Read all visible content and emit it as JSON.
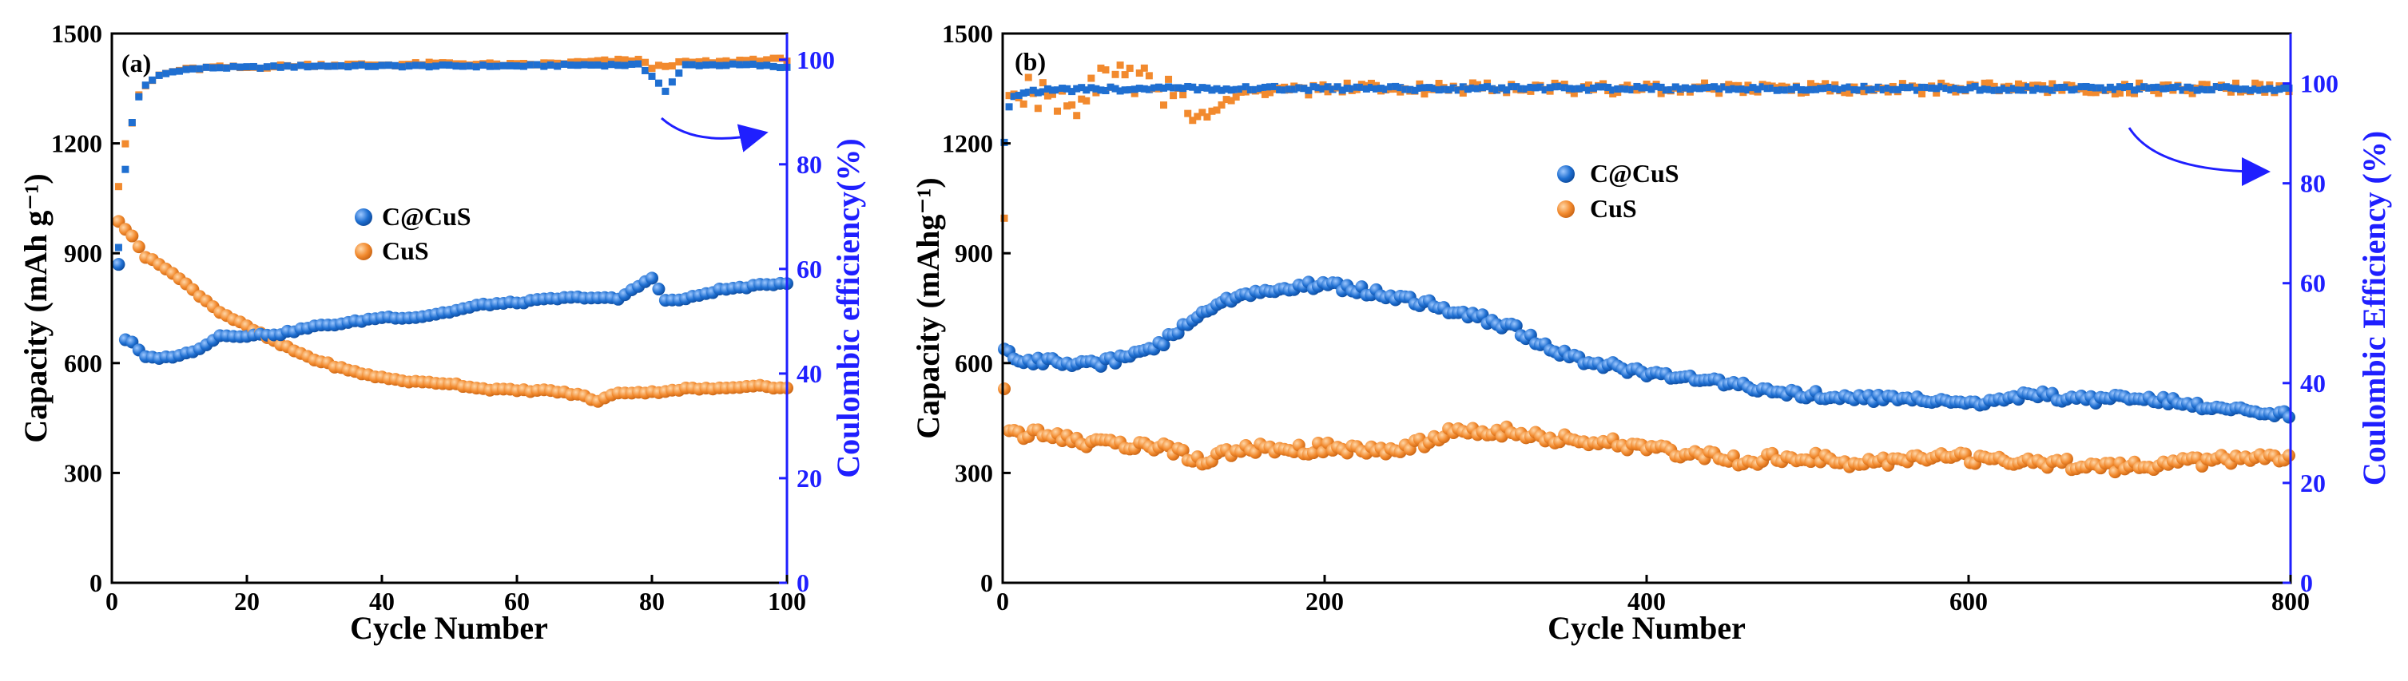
{
  "colors": {
    "ccus": "#1f6fd1",
    "cus": "#f28a2e",
    "ce_ccus": "#1f6fd1",
    "ce_cus": "#f28a2e",
    "right_axis": "#1f1fff",
    "arrow": "#1f1fff"
  },
  "chart_data": [
    {
      "type": "scatter",
      "panel": "(a)",
      "xlabel": "Cycle Number",
      "ylabel": "Capacity (mAh g⁻¹)",
      "y2label": "Coulombic efficiency(%)",
      "xlim": [
        0,
        100
      ],
      "ylim": [
        0,
        1500
      ],
      "y2lim": [
        0,
        105
      ],
      "xticks": [
        0,
        20,
        40,
        60,
        80,
        100
      ],
      "yticks": [
        0,
        300,
        600,
        900,
        1200,
        1500
      ],
      "y2ticks": [
        0,
        20,
        40,
        60,
        80,
        100
      ],
      "legend": [
        "C@CuS",
        "CuS"
      ],
      "legend_position": "center",
      "arrow_target": "right-axis",
      "capacity_ccus": [
        [
          1,
          870
        ],
        [
          2,
          665
        ],
        [
          3,
          655
        ],
        [
          5,
          615
        ],
        [
          8,
          615
        ],
        [
          12,
          630
        ],
        [
          16,
          675
        ],
        [
          20,
          675
        ],
        [
          25,
          680
        ],
        [
          30,
          700
        ],
        [
          35,
          710
        ],
        [
          40,
          725
        ],
        [
          45,
          725
        ],
        [
          50,
          740
        ],
        [
          55,
          760
        ],
        [
          60,
          765
        ],
        [
          65,
          775
        ],
        [
          70,
          780
        ],
        [
          75,
          775
        ],
        [
          78,
          810
        ],
        [
          80,
          835
        ],
        [
          82,
          770
        ],
        [
          85,
          775
        ],
        [
          90,
          800
        ],
        [
          95,
          810
        ],
        [
          100,
          820
        ]
      ],
      "capacity_cus": [
        [
          1,
          985
        ],
        [
          2,
          965
        ],
        [
          3,
          950
        ],
        [
          5,
          890
        ],
        [
          8,
          860
        ],
        [
          12,
          800
        ],
        [
          16,
          740
        ],
        [
          20,
          700
        ],
        [
          25,
          650
        ],
        [
          30,
          610
        ],
        [
          35,
          580
        ],
        [
          40,
          560
        ],
        [
          45,
          548
        ],
        [
          50,
          545
        ],
        [
          55,
          530
        ],
        [
          60,
          525
        ],
        [
          65,
          525
        ],
        [
          70,
          510
        ],
        [
          72,
          495
        ],
        [
          75,
          520
        ],
        [
          80,
          520
        ],
        [
          85,
          530
        ],
        [
          90,
          530
        ],
        [
          95,
          540
        ],
        [
          100,
          530
        ]
      ],
      "ce_ccus": [
        [
          1,
          64
        ],
        [
          2,
          79
        ],
        [
          3,
          88
        ],
        [
          4,
          93
        ],
        [
          5,
          95
        ],
        [
          7,
          97
        ],
        [
          10,
          98
        ],
        [
          15,
          98.5
        ],
        [
          20,
          98.5
        ],
        [
          30,
          98.8
        ],
        [
          40,
          98.8
        ],
        [
          50,
          98.8
        ],
        [
          60,
          98.8
        ],
        [
          70,
          99
        ],
        [
          78,
          99
        ],
        [
          80,
          97
        ],
        [
          82,
          94
        ],
        [
          85,
          99
        ],
        [
          90,
          99
        ],
        [
          95,
          99
        ],
        [
          100,
          98.5
        ]
      ],
      "ce_cus": [
        [
          1,
          76
        ],
        [
          2,
          84
        ],
        [
          3,
          88
        ],
        [
          4,
          93
        ],
        [
          5,
          95
        ],
        [
          7,
          97
        ],
        [
          10,
          98
        ],
        [
          15,
          98.5
        ],
        [
          20,
          98.5
        ],
        [
          30,
          99
        ],
        [
          40,
          99
        ],
        [
          50,
          99.3
        ],
        [
          60,
          99
        ],
        [
          70,
          99.5
        ],
        [
          78,
          100
        ],
        [
          80,
          98.5
        ],
        [
          85,
          99.5
        ],
        [
          90,
          99.5
        ],
        [
          95,
          100
        ],
        [
          100,
          100
        ]
      ]
    },
    {
      "type": "scatter",
      "panel": "(b)",
      "xlabel": "Cycle Number",
      "ylabel": "Capacity (mAhg⁻¹)",
      "y2label": "Coulombic Efficiency (%)",
      "xlim": [
        0,
        800
      ],
      "ylim": [
        0,
        1500
      ],
      "y2lim": [
        0,
        110
      ],
      "xticks": [
        0,
        200,
        400,
        600,
        800
      ],
      "yticks": [
        0,
        300,
        600,
        900,
        1200,
        1500
      ],
      "y2ticks": [
        0,
        20,
        40,
        60,
        80,
        100
      ],
      "legend": [
        "C@CuS",
        "CuS"
      ],
      "legend_position": "center",
      "arrow_target": "right-axis",
      "capacity_ccus": [
        [
          1,
          640
        ],
        [
          10,
          610
        ],
        [
          30,
          605
        ],
        [
          60,
          600
        ],
        [
          80,
          620
        ],
        [
          100,
          660
        ],
        [
          120,
          720
        ],
        [
          140,
          770
        ],
        [
          160,
          795
        ],
        [
          180,
          810
        ],
        [
          200,
          815
        ],
        [
          220,
          800
        ],
        [
          240,
          785
        ],
        [
          260,
          765
        ],
        [
          280,
          745
        ],
        [
          300,
          720
        ],
        [
          320,
          690
        ],
        [
          340,
          640
        ],
        [
          360,
          605
        ],
        [
          380,
          590
        ],
        [
          400,
          575
        ],
        [
          420,
          565
        ],
        [
          440,
          555
        ],
        [
          460,
          540
        ],
        [
          480,
          525
        ],
        [
          500,
          515
        ],
        [
          520,
          510
        ],
        [
          540,
          505
        ],
        [
          560,
          505
        ],
        [
          580,
          500
        ],
        [
          600,
          490
        ],
        [
          620,
          500
        ],
        [
          640,
          520
        ],
        [
          660,
          505
        ],
        [
          680,
          500
        ],
        [
          700,
          510
        ],
        [
          720,
          500
        ],
        [
          740,
          485
        ],
        [
          760,
          470
        ],
        [
          780,
          465
        ],
        [
          800,
          455
        ]
      ],
      "capacity_cus": [
        [
          1,
          520
        ],
        [
          3,
          430
        ],
        [
          10,
          410
        ],
        [
          30,
          400
        ],
        [
          60,
          380
        ],
        [
          80,
          375
        ],
        [
          100,
          370
        ],
        [
          110,
          360
        ],
        [
          120,
          330
        ],
        [
          140,
          360
        ],
        [
          160,
          365
        ],
        [
          180,
          360
        ],
        [
          200,
          370
        ],
        [
          220,
          360
        ],
        [
          240,
          365
        ],
        [
          260,
          380
        ],
        [
          280,
          420
        ],
        [
          300,
          415
        ],
        [
          320,
          410
        ],
        [
          340,
          395
        ],
        [
          360,
          390
        ],
        [
          380,
          380
        ],
        [
          400,
          365
        ],
        [
          420,
          355
        ],
        [
          440,
          345
        ],
        [
          460,
          335
        ],
        [
          480,
          340
        ],
        [
          500,
          345
        ],
        [
          520,
          330
        ],
        [
          540,
          330
        ],
        [
          560,
          330
        ],
        [
          580,
          340
        ],
        [
          600,
          340
        ],
        [
          620,
          335
        ],
        [
          640,
          330
        ],
        [
          660,
          325
        ],
        [
          680,
          320
        ],
        [
          700,
          315
        ],
        [
          720,
          320
        ],
        [
          740,
          330
        ],
        [
          760,
          335
        ],
        [
          780,
          340
        ],
        [
          800,
          345
        ]
      ],
      "ce_ccus": [
        [
          1,
          88
        ],
        [
          3,
          94
        ],
        [
          5,
          97
        ],
        [
          10,
          98
        ],
        [
          20,
          98.5
        ],
        [
          50,
          98.8
        ],
        [
          100,
          99
        ],
        [
          200,
          99
        ],
        [
          300,
          99
        ],
        [
          400,
          99
        ],
        [
          500,
          99
        ],
        [
          600,
          99
        ],
        [
          700,
          99
        ],
        [
          800,
          99
        ]
      ],
      "ce_cus": [
        [
          1,
          76
        ],
        [
          3,
          92
        ],
        [
          5,
          97
        ],
        [
          10,
          98
        ],
        [
          20,
          98
        ],
        [
          30,
          97
        ],
        [
          50,
          95
        ],
        [
          55,
          100
        ],
        [
          70,
          101
        ],
        [
          100,
          99
        ],
        [
          120,
          93
        ],
        [
          150,
          98
        ],
        [
          200,
          99
        ],
        [
          250,
          99
        ],
        [
          300,
          99
        ],
        [
          350,
          99
        ],
        [
          400,
          99
        ],
        [
          500,
          99
        ],
        [
          600,
          99
        ],
        [
          700,
          99
        ],
        [
          800,
          99
        ]
      ]
    }
  ]
}
